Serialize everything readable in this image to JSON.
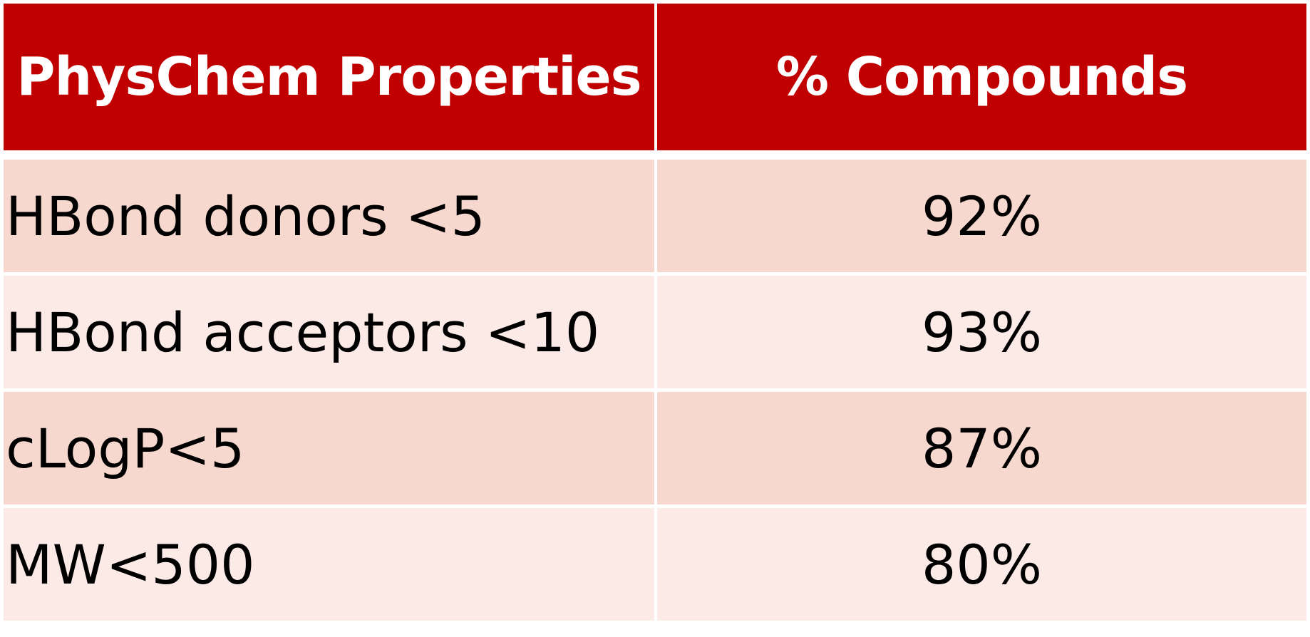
{
  "table": {
    "headers": {
      "property": "PhysChem Properties",
      "percent": "% Compounds"
    },
    "rows": [
      {
        "property": "HBond donors <5",
        "percent": "92%"
      },
      {
        "property": "HBond acceptors <10",
        "percent": "93%"
      },
      {
        "property": "cLogP<5",
        "percent": "87%"
      },
      {
        "property": "MW<500",
        "percent": "80%"
      }
    ]
  },
  "colors": {
    "header_bg": "#c00000",
    "header_text": "#ffffff",
    "row_dark": "#f7d8cf",
    "row_light": "#fbeae6"
  }
}
